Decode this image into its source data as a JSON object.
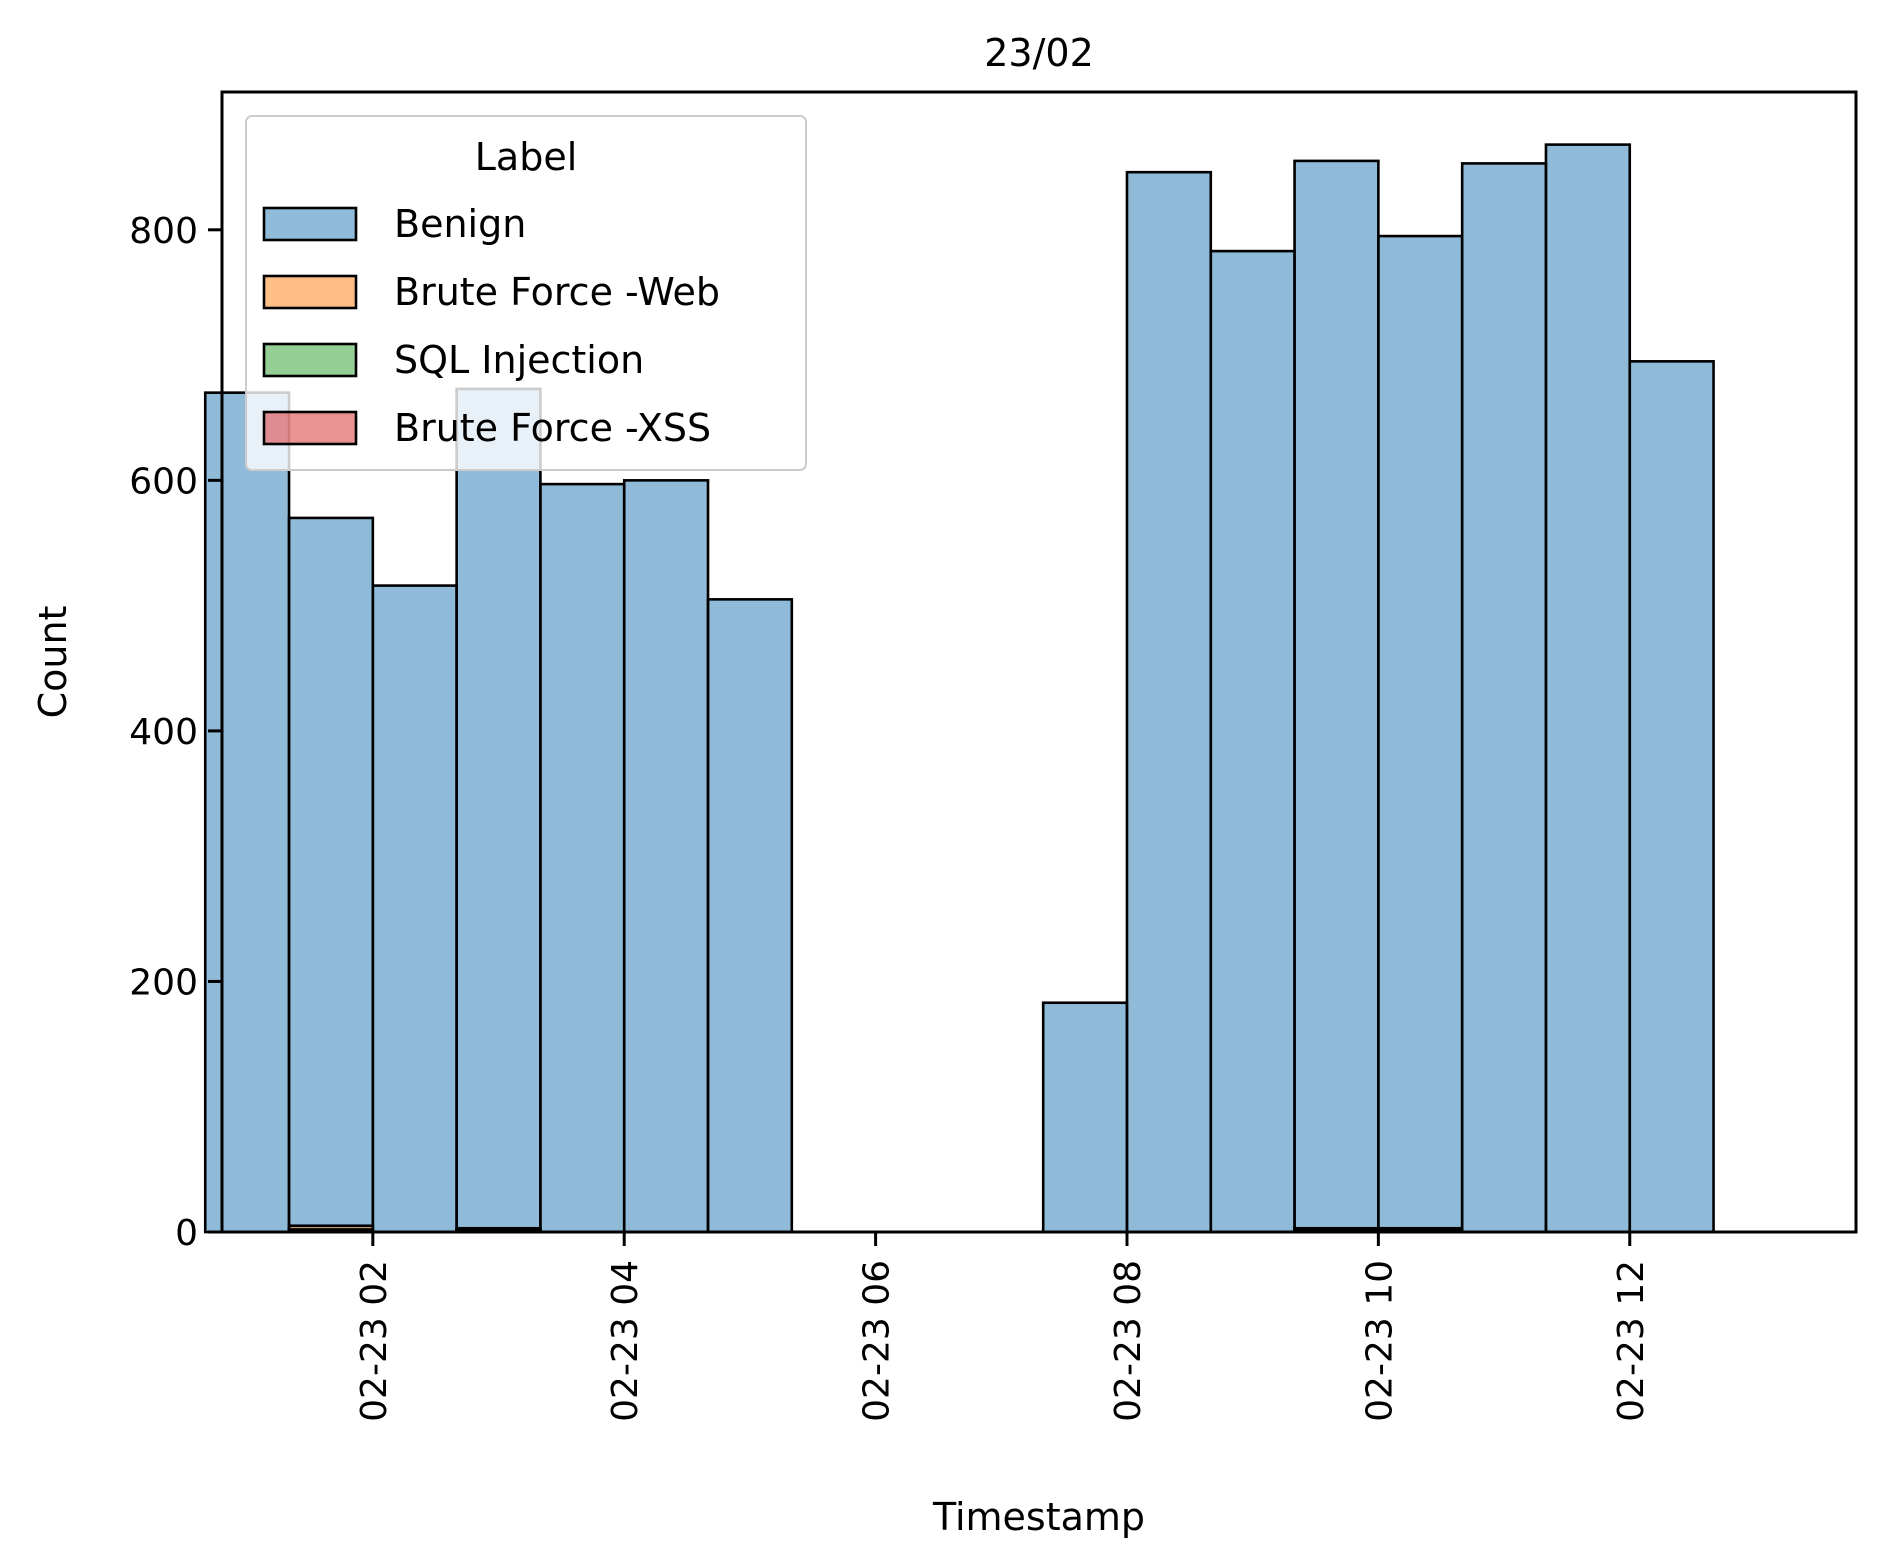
{
  "chart_data": {
    "type": "bar",
    "title": "23/02",
    "xlabel": "Timestamp",
    "ylabel": "Count",
    "xlim_hours": [
      0.8,
      13.8
    ],
    "ylim": [
      0,
      910
    ],
    "x_ticks": [
      {
        "hour": 2,
        "label": "02-23 02"
      },
      {
        "hour": 4,
        "label": "02-23 04"
      },
      {
        "hour": 6,
        "label": "02-23 06"
      },
      {
        "hour": 8,
        "label": "02-23 08"
      },
      {
        "hour": 10,
        "label": "02-23 10"
      },
      {
        "hour": 12,
        "label": "02-23 12"
      }
    ],
    "y_ticks": [
      0,
      200,
      400,
      600,
      800
    ],
    "bin_edges_hours": [
      0.6667,
      1.3333,
      2.0,
      2.6667,
      3.3333,
      4.0,
      4.6667,
      5.3333,
      6.0,
      6.6667,
      7.3333,
      8.0,
      8.6667,
      9.3333,
      10.0,
      10.6667,
      11.3333,
      12.0,
      12.6667
    ],
    "series": [
      {
        "name": "Benign",
        "color": "#1f77b4",
        "values": [
          670,
          570,
          516,
          673,
          597,
          600,
          505,
          0,
          0,
          0,
          183,
          846,
          783,
          855,
          795,
          853,
          868,
          695
        ]
      },
      {
        "name": "Brute Force -Web",
        "color": "#ff7f0e",
        "values": [
          0,
          5,
          0,
          3,
          0,
          0,
          0,
          0,
          0,
          0,
          0,
          0,
          0,
          3,
          3,
          0,
          0,
          0
        ]
      },
      {
        "name": "SQL Injection",
        "color": "#2ca02c",
        "values": [
          0,
          1,
          0,
          1,
          0,
          0,
          0,
          0,
          0,
          0,
          0,
          0,
          0,
          1,
          1,
          0,
          0,
          0
        ]
      },
      {
        "name": "Brute Force -XSS",
        "color": "#d62728",
        "values": [
          0,
          2,
          0,
          2,
          0,
          0,
          0,
          0,
          0,
          0,
          0,
          0,
          0,
          2,
          2,
          0,
          0,
          0
        ]
      }
    ],
    "legend": {
      "title": "Label",
      "position": "top-left"
    },
    "grid": false
  }
}
